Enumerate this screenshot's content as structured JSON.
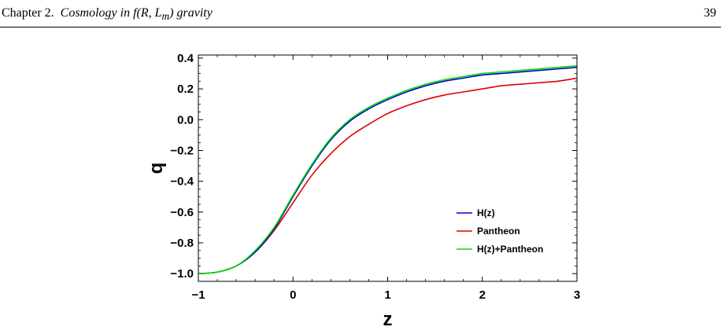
{
  "header": {
    "chapter": "Chapter 2.",
    "title": "Cosmology in f(R, L",
    "title_sub": "m",
    "title_end": ") gravity",
    "page_number": "39"
  },
  "chart_data": {
    "type": "line",
    "xlabel": "z",
    "ylabel": "q",
    "xlim": [
      -1,
      3
    ],
    "ylim": [
      -1.05,
      0.42
    ],
    "xticks": [
      -1,
      0,
      1,
      2,
      3
    ],
    "xtick_labels": [
      "−1",
      "0",
      "1",
      "2",
      "3"
    ],
    "yticks": [
      -1.0,
      -0.8,
      -0.6,
      -0.4,
      -0.2,
      0.0,
      0.2,
      0.4
    ],
    "ytick_labels": [
      "−1.0",
      "−0.8",
      "−0.6",
      "−0.4",
      "−0.2",
      "0.0",
      "0.2",
      "0.4"
    ],
    "grid": false,
    "legend_position": "bottom-right",
    "series": [
      {
        "name": "H(z)",
        "color": "#0000cc",
        "x": [
          -1,
          -0.8,
          -0.6,
          -0.4,
          -0.2,
          0,
          0.2,
          0.4,
          0.6,
          0.8,
          1.0,
          1.2,
          1.4,
          1.6,
          1.8,
          2.0,
          2.2,
          2.4,
          2.6,
          2.8,
          3.0
        ],
        "y": [
          -1.0,
          -0.99,
          -0.95,
          -0.86,
          -0.71,
          -0.5,
          -0.3,
          -0.13,
          -0.01,
          0.07,
          0.13,
          0.18,
          0.22,
          0.25,
          0.27,
          0.29,
          0.3,
          0.31,
          0.32,
          0.33,
          0.34
        ]
      },
      {
        "name": "Pantheon",
        "color": "#dd0000",
        "x": [
          -1,
          -0.8,
          -0.6,
          -0.4,
          -0.2,
          0,
          0.2,
          0.4,
          0.6,
          0.8,
          1.0,
          1.2,
          1.4,
          1.6,
          1.8,
          2.0,
          2.2,
          2.4,
          2.6,
          2.8,
          3.0
        ],
        "y": [
          -1.0,
          -0.99,
          -0.95,
          -0.86,
          -0.72,
          -0.54,
          -0.36,
          -0.22,
          -0.11,
          -0.03,
          0.04,
          0.09,
          0.13,
          0.16,
          0.18,
          0.2,
          0.22,
          0.23,
          0.24,
          0.25,
          0.27
        ]
      },
      {
        "name": "H(z)+Pantheon",
        "color": "#00e000",
        "x": [
          -1,
          -0.8,
          -0.6,
          -0.4,
          -0.2,
          0,
          0.2,
          0.4,
          0.6,
          0.8,
          1.0,
          1.2,
          1.4,
          1.6,
          1.8,
          2.0,
          2.2,
          2.4,
          2.6,
          2.8,
          3.0
        ],
        "y": [
          -1.0,
          -0.99,
          -0.95,
          -0.85,
          -0.7,
          -0.49,
          -0.29,
          -0.12,
          0.0,
          0.08,
          0.14,
          0.19,
          0.23,
          0.26,
          0.28,
          0.3,
          0.31,
          0.32,
          0.33,
          0.34,
          0.35
        ]
      }
    ]
  }
}
